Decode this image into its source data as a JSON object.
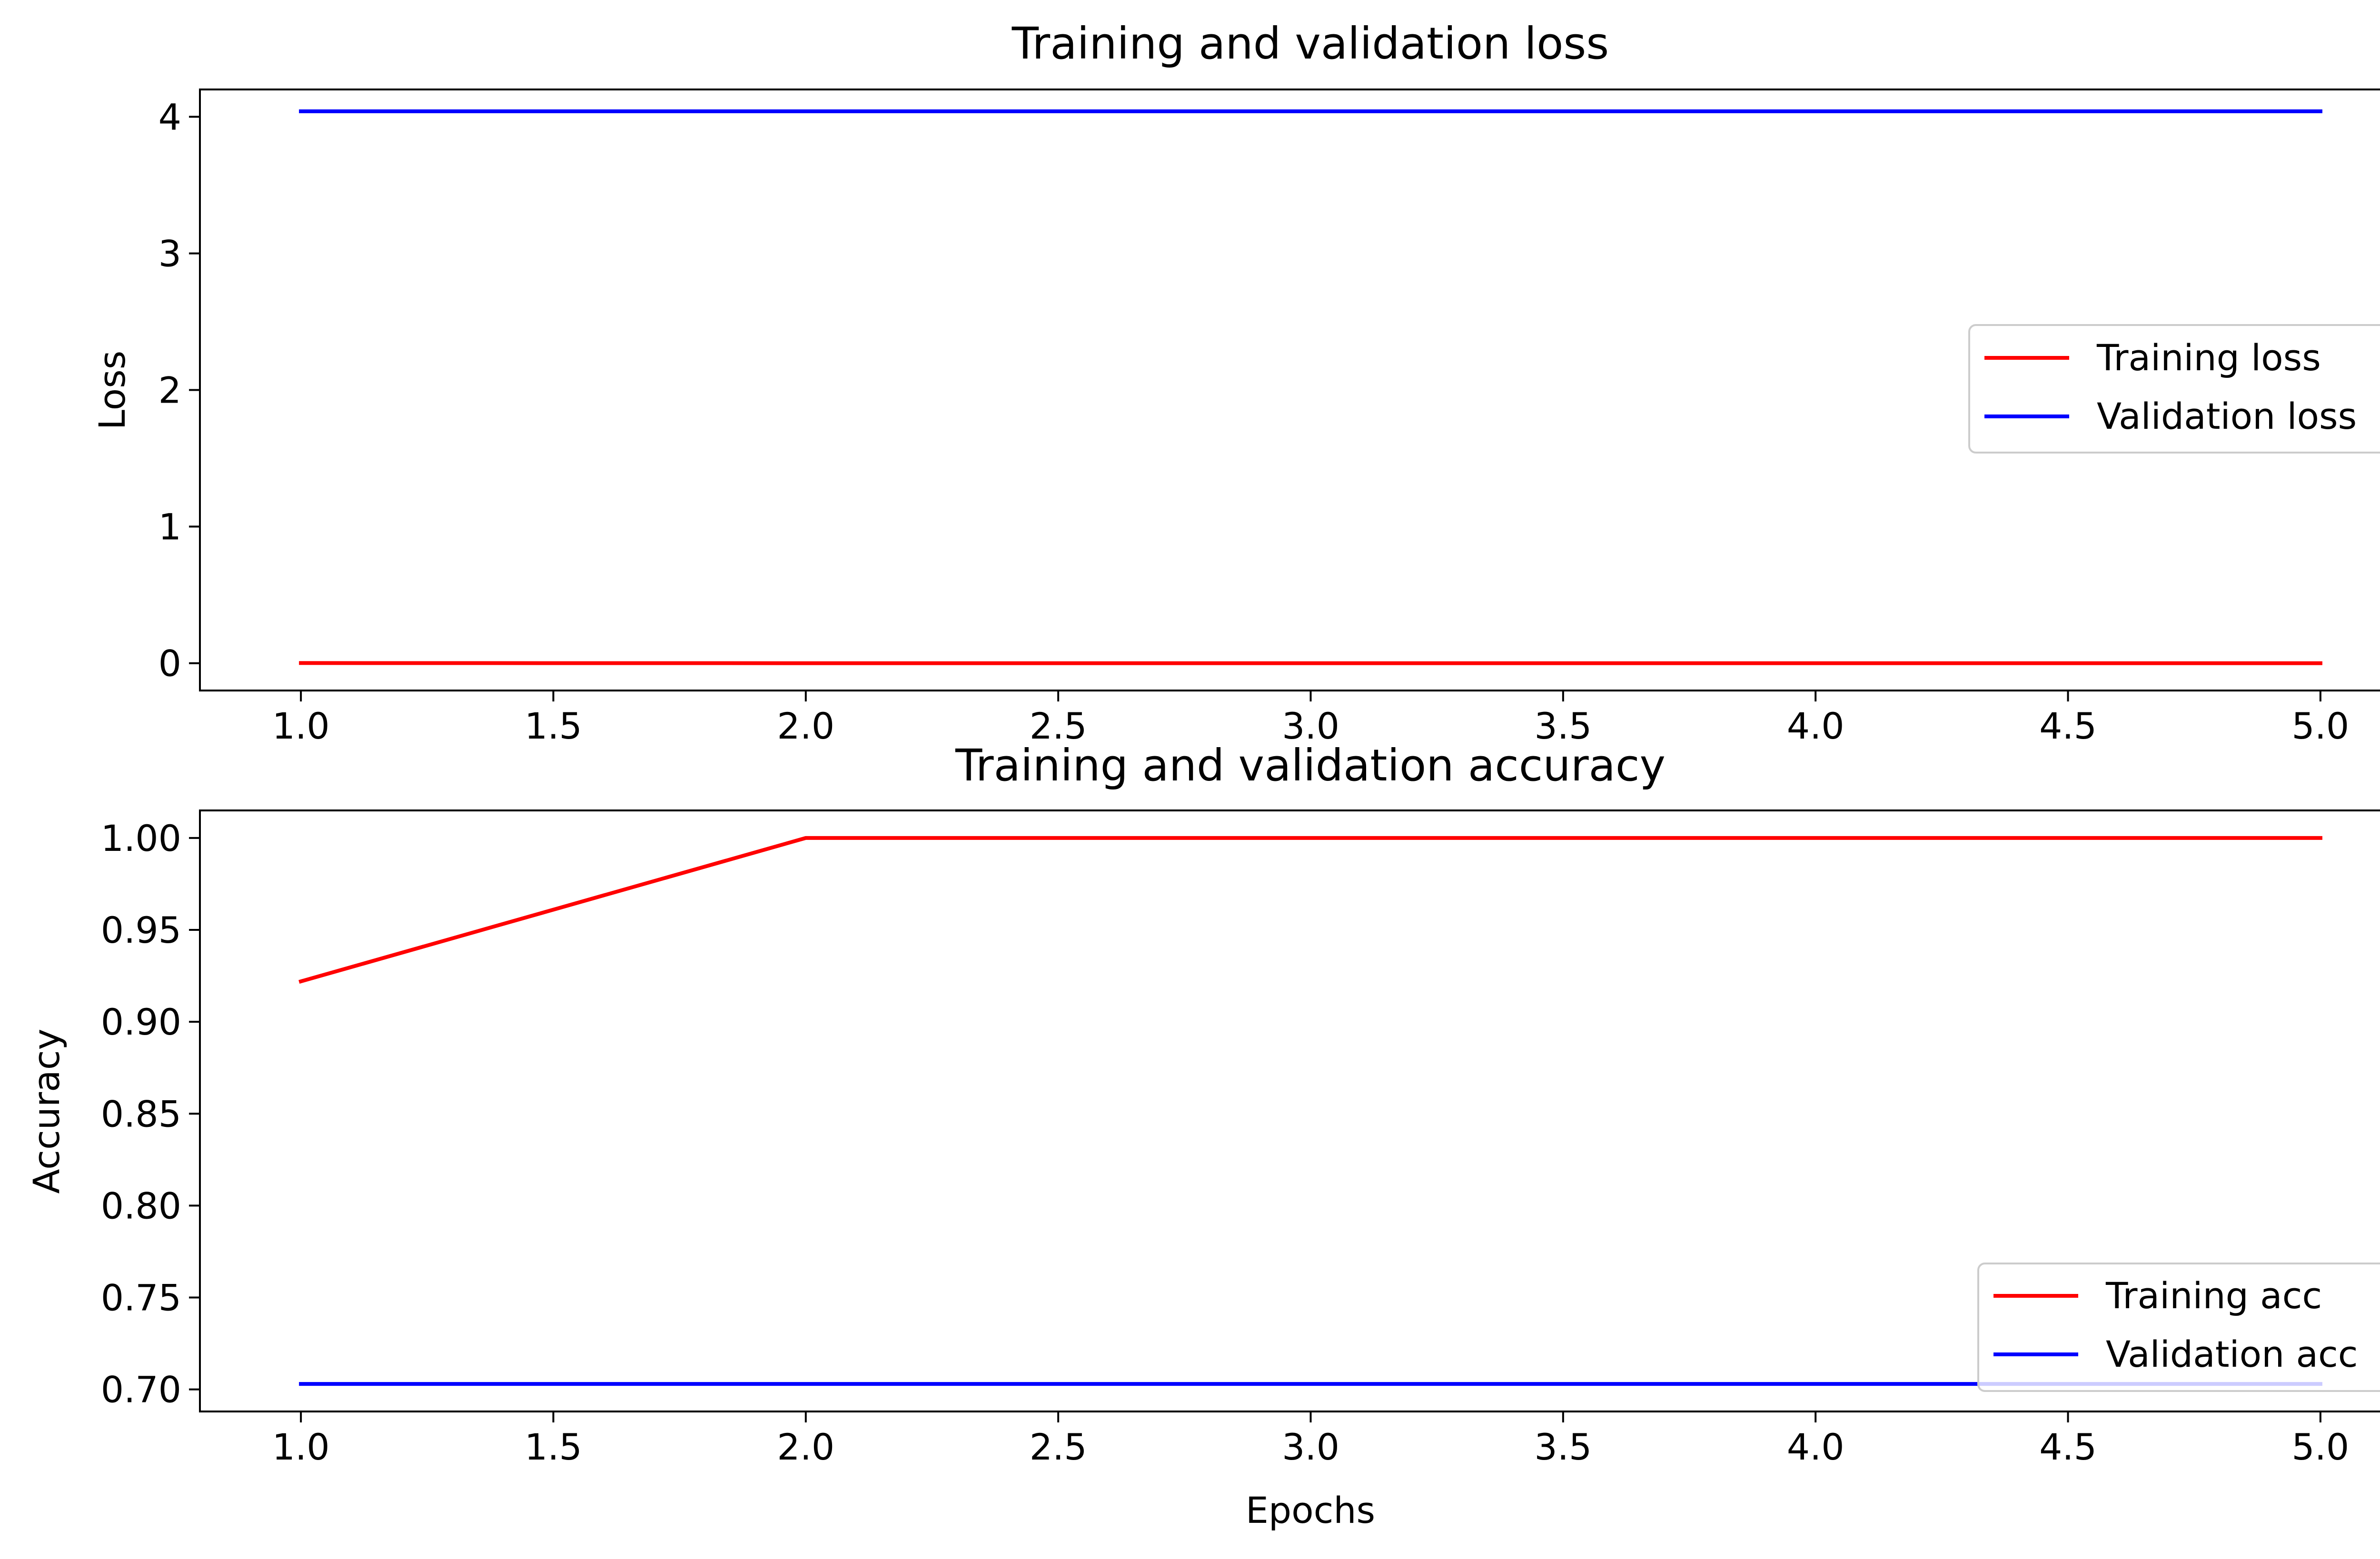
{
  "chart_data": [
    {
      "type": "line",
      "title": "Training and validation loss",
      "xlabel": "",
      "ylabel": "Loss",
      "xlim": [
        0.8,
        5.2
      ],
      "ylim": [
        -0.2,
        4.2
      ],
      "xticks": [
        1.0,
        1.5,
        2.0,
        2.5,
        3.0,
        3.5,
        4.0,
        4.5,
        5.0
      ],
      "xtick_labels": [
        "1.0",
        "1.5",
        "2.0",
        "2.5",
        "3.0",
        "3.5",
        "4.0",
        "4.5",
        "5.0"
      ],
      "yticks": [
        0,
        1,
        2,
        3,
        4
      ],
      "ytick_labels": [
        "0",
        "1",
        "2",
        "3",
        "4"
      ],
      "grid": false,
      "legend_position": "center-right",
      "x": [
        1,
        2,
        3,
        4,
        5
      ],
      "series": [
        {
          "name": "Training loss",
          "color": "#ff0000",
          "values": [
            0.001,
            0.0,
            0.0,
            0.0,
            0.0
          ]
        },
        {
          "name": "Validation loss",
          "color": "#0000ff",
          "values": [
            4.04,
            4.04,
            4.04,
            4.04,
            4.04
          ]
        }
      ]
    },
    {
      "type": "line",
      "title": "Training and validation accuracy",
      "xlabel": "Epochs",
      "ylabel": "Accuracy",
      "xlim": [
        0.8,
        5.2
      ],
      "ylim": [
        0.688,
        1.015
      ],
      "xticks": [
        1.0,
        1.5,
        2.0,
        2.5,
        3.0,
        3.5,
        4.0,
        4.5,
        5.0
      ],
      "xtick_labels": [
        "1.0",
        "1.5",
        "2.0",
        "2.5",
        "3.0",
        "3.5",
        "4.0",
        "4.5",
        "5.0"
      ],
      "yticks": [
        0.7,
        0.75,
        0.8,
        0.85,
        0.9,
        0.95,
        1.0
      ],
      "ytick_labels": [
        "0.70",
        "0.75",
        "0.80",
        "0.85",
        "0.90",
        "0.95",
        "1.00"
      ],
      "grid": false,
      "legend_position": "lower-right",
      "x": [
        1,
        2,
        3,
        4,
        5
      ],
      "series": [
        {
          "name": "Training acc",
          "color": "#ff0000",
          "values": [
            0.922,
            1.0,
            1.0,
            1.0,
            1.0
          ]
        },
        {
          "name": "Validation acc",
          "color": "#0000ff",
          "values": [
            0.703,
            0.703,
            0.703,
            0.703,
            0.703
          ]
        }
      ]
    }
  ]
}
